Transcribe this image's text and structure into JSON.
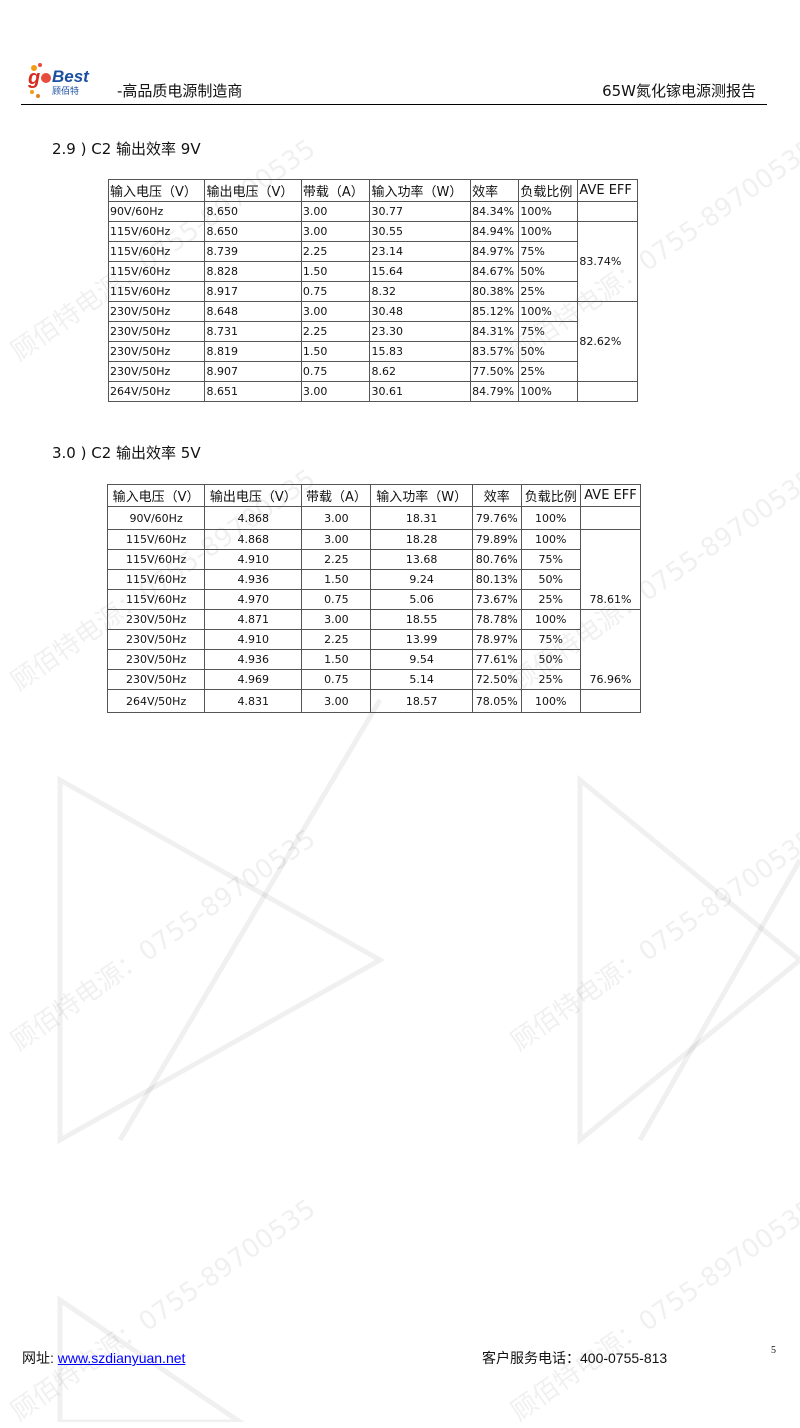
{
  "header": {
    "logo_text": "goBest 顾佰特",
    "tagline": "-高品质电源制造商",
    "report_title": "65W氮化镓电源测报告"
  },
  "watermark": "顾佰特电源：0755-89700535",
  "sections": [
    {
      "title": "2.9 ) C2 输出效率 9V",
      "columns": [
        "输入电压（V）",
        "输出电压（V）",
        "带载（A）",
        "输入功率（W）",
        "效率",
        "负载比例",
        "AVE EFF"
      ],
      "rows": [
        [
          "90V/60Hz",
          "8.650",
          "3.00",
          "30.77",
          "84.34%",
          "100%"
        ],
        [
          "115V/60Hz",
          "8.650",
          "3.00",
          "30.55",
          "84.94%",
          "100%"
        ],
        [
          "115V/60Hz",
          "8.739",
          "2.25",
          "23.14",
          "84.97%",
          "75%"
        ],
        [
          "115V/60Hz",
          "8.828",
          "1.50",
          "15.64",
          "84.67%",
          "50%"
        ],
        [
          "115V/60Hz",
          "8.917",
          "0.75",
          "8.32",
          "80.38%",
          "25%"
        ],
        [
          "230V/50Hz",
          "8.648",
          "3.00",
          "30.48",
          "85.12%",
          "100%"
        ],
        [
          "230V/50Hz",
          "8.731",
          "2.25",
          "23.30",
          "84.31%",
          "75%"
        ],
        [
          "230V/50Hz",
          "8.819",
          "1.50",
          "15.83",
          "83.57%",
          "50%"
        ],
        [
          "230V/50Hz",
          "8.907",
          "0.75",
          "8.62",
          "77.50%",
          "25%"
        ],
        [
          "264V/50Hz",
          "8.651",
          "3.00",
          "30.61",
          "84.79%",
          "100%"
        ]
      ],
      "ave": [
        "",
        "83.74%",
        "82.62%",
        ""
      ]
    },
    {
      "title": "3.0 ) C2 输出效率 5V",
      "columns": [
        "输入电压（V）",
        "输出电压（V）",
        "带载（A）",
        "输入功率（W）",
        "效率",
        "负载比例",
        "AVE EFF"
      ],
      "rows": [
        [
          "90V/60Hz",
          "4.868",
          "3.00",
          "18.31",
          "79.76%",
          "100%"
        ],
        [
          "115V/60Hz",
          "4.868",
          "3.00",
          "18.28",
          "79.89%",
          "100%"
        ],
        [
          "115V/60Hz",
          "4.910",
          "2.25",
          "13.68",
          "80.76%",
          "75%"
        ],
        [
          "115V/60Hz",
          "4.936",
          "1.50",
          "9.24",
          "80.13%",
          "50%"
        ],
        [
          "115V/60Hz",
          "4.970",
          "0.75",
          "5.06",
          "73.67%",
          "25%"
        ],
        [
          "230V/50Hz",
          "4.871",
          "3.00",
          "18.55",
          "78.78%",
          "100%"
        ],
        [
          "230V/50Hz",
          "4.910",
          "2.25",
          "13.99",
          "78.97%",
          "75%"
        ],
        [
          "230V/50Hz",
          "4.936",
          "1.50",
          "9.54",
          "77.61%",
          "50%"
        ],
        [
          "230V/50Hz",
          "4.969",
          "0.75",
          "5.14",
          "72.50%",
          "25%"
        ],
        [
          "264V/50Hz",
          "4.831",
          "3.00",
          "18.57",
          "78.05%",
          "100%"
        ]
      ],
      "ave": [
        "",
        "78.61%",
        "76.96%",
        ""
      ]
    }
  ],
  "footer": {
    "site_label": "网址: ",
    "site_link": "www.szdianyuan.net",
    "service": "客户服务电话：400-0755-813",
    "page_number": "5"
  }
}
